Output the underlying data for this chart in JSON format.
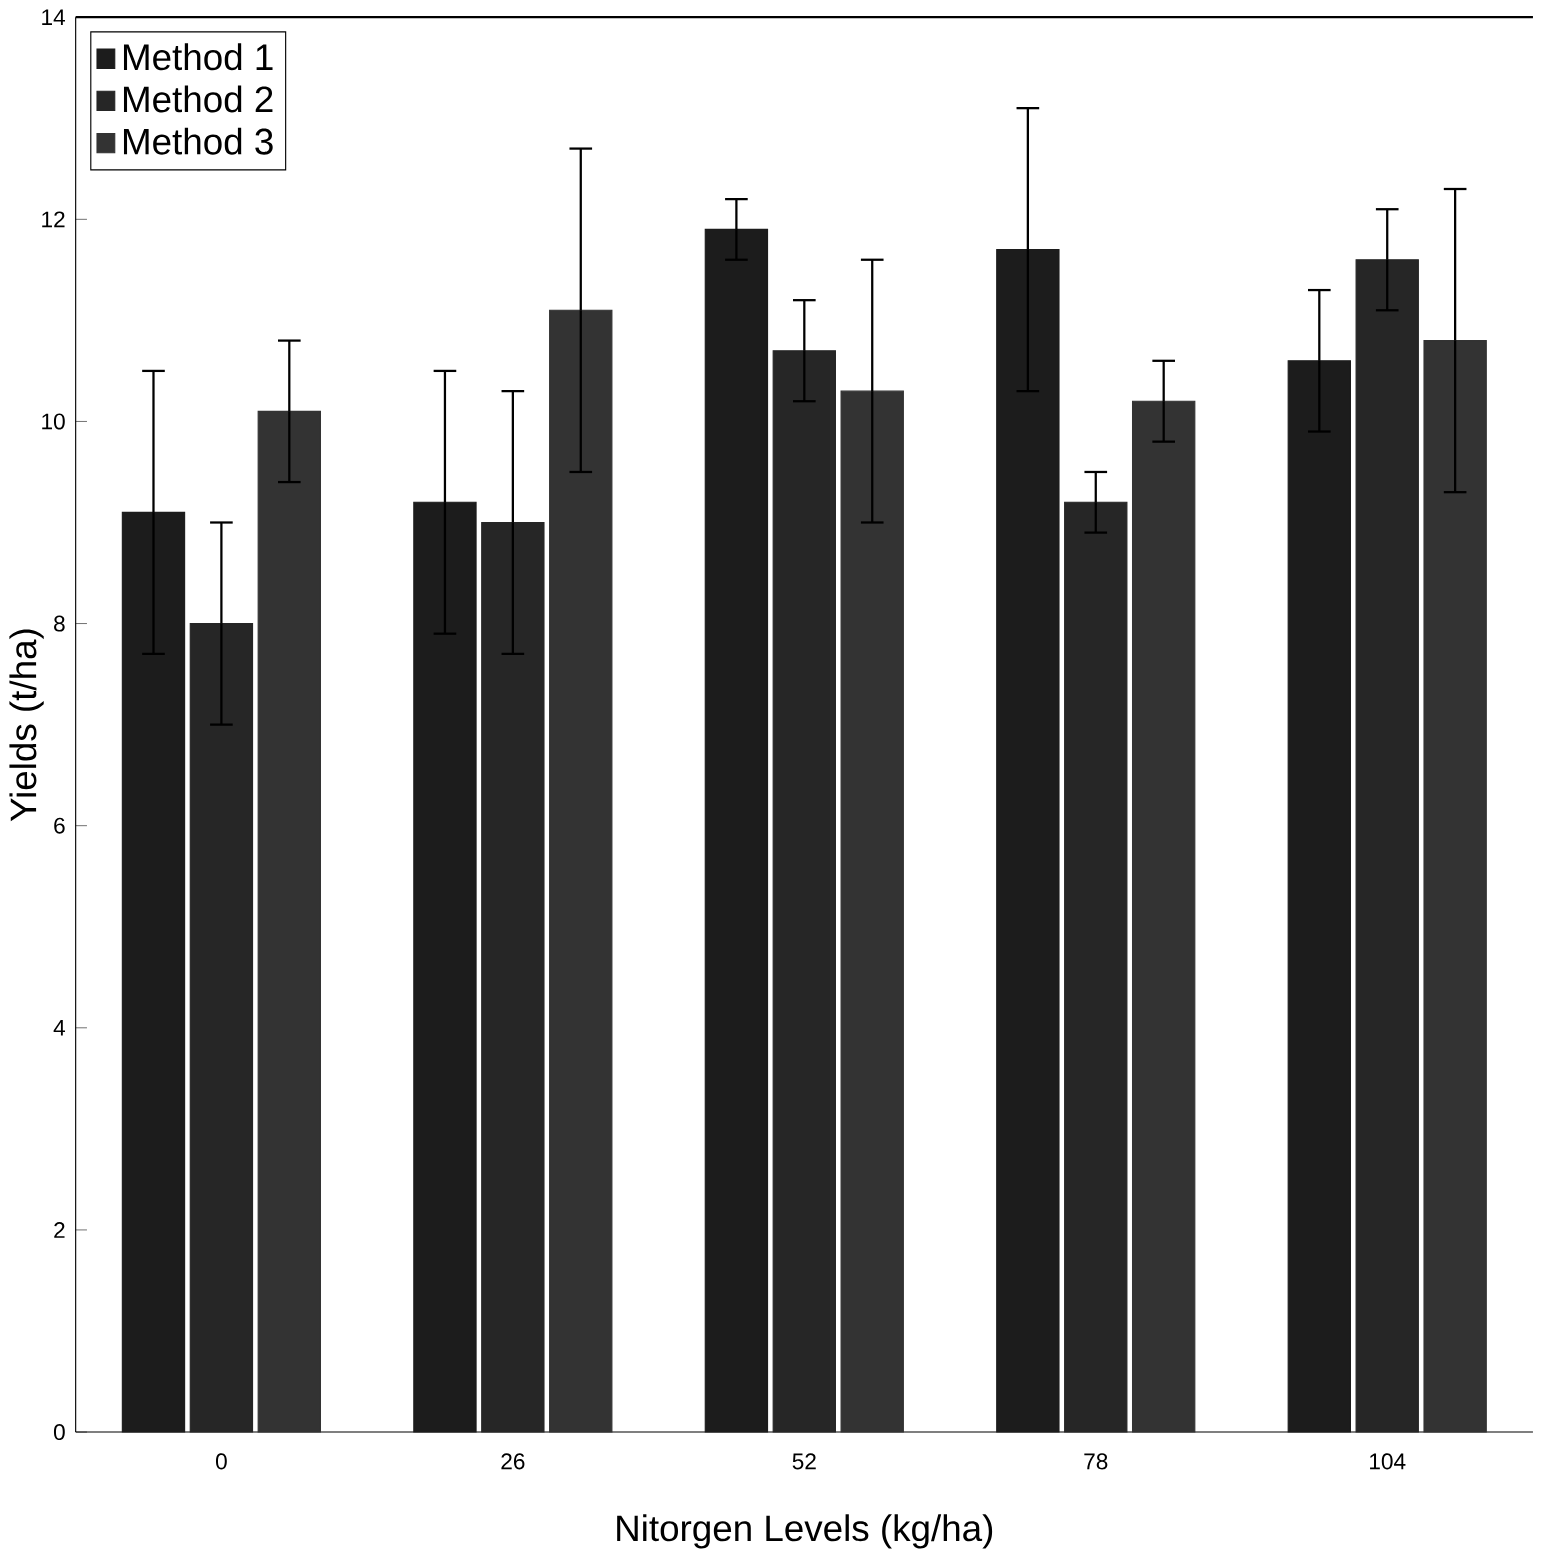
{
  "chart_data": {
    "type": "bar",
    "xlabel": "Nitorgen Levels (kg/ha)",
    "ylabel": "Yields (t/ha)",
    "categories": [
      "0",
      "26",
      "52",
      "78",
      "104"
    ],
    "series": [
      {
        "name": "Method 1",
        "color": "#1c1c1c",
        "values": [
          9.1,
          9.2,
          11.9,
          11.7,
          10.6
        ],
        "errors": [
          1.4,
          1.3,
          0.3,
          1.4,
          0.7
        ]
      },
      {
        "name": "Method 2",
        "color": "#262626",
        "values": [
          8.0,
          9.0,
          10.7,
          9.2,
          11.6
        ],
        "errors": [
          1.0,
          1.3,
          0.5,
          0.3,
          0.5
        ]
      },
      {
        "name": "Method 3",
        "color": "#333333",
        "values": [
          10.1,
          11.1,
          10.3,
          10.2,
          10.8
        ],
        "errors": [
          0.7,
          1.6,
          1.3,
          0.4,
          1.5
        ]
      }
    ],
    "ylim": [
      0,
      14
    ],
    "yticks": [
      0,
      2,
      4,
      6,
      8,
      10,
      12,
      14
    ],
    "grid": false,
    "legend": "top left"
  }
}
